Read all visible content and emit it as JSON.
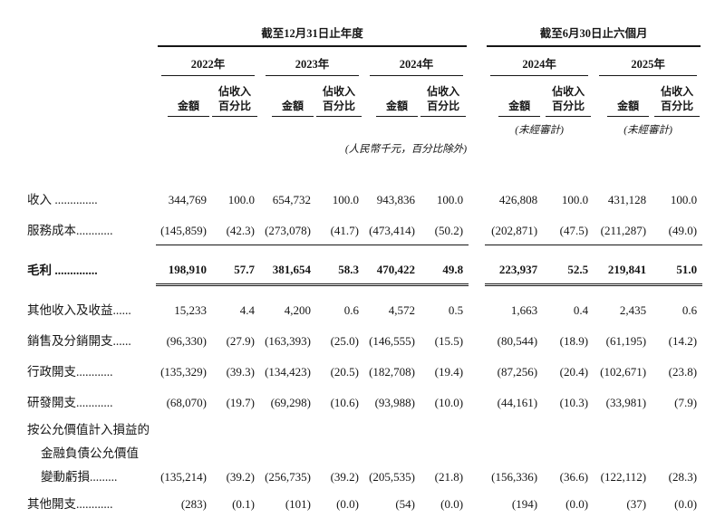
{
  "table": {
    "period_headers": {
      "annual": "截至12月31日止年度",
      "interim": "截至6月30日止六個月"
    },
    "year_headers": [
      "2022年",
      "2023年",
      "2024年",
      "2024年",
      "2025年"
    ],
    "col_headers": {
      "amount": "金額",
      "pct": "佔收入\n百分比"
    },
    "unaudited": "(未經審計)",
    "note": "(人民幣千元，百分比除外)",
    "rows": [
      {
        "label": "收入 ..............",
        "values": [
          "344,769",
          "100.0",
          "654,732",
          "100.0",
          "943,836",
          "100.0",
          "426,808",
          "100.0",
          "431,128",
          "100.0"
        ]
      },
      {
        "label": "服務成本............",
        "rule": "single",
        "values": [
          "(145,859)",
          "(42.3)",
          "(273,078)",
          "(41.7)",
          "(473,414)",
          "(50.2)",
          "(202,871)",
          "(47.5)",
          "(211,287)",
          "(49.0)"
        ]
      },
      {
        "label": "毛利 ..............",
        "bold": true,
        "gap_above": true,
        "rule": "double",
        "values": [
          "198,910",
          "57.7",
          "381,654",
          "58.3",
          "470,422",
          "49.8",
          "223,937",
          "52.5",
          "219,841",
          "51.0"
        ]
      },
      {
        "label": "其他收入及收益......",
        "gap_above": true,
        "values": [
          "15,233",
          "4.4",
          "4,200",
          "0.6",
          "4,572",
          "0.5",
          "1,663",
          "0.4",
          "2,435",
          "0.6"
        ]
      },
      {
        "label": "銷售及分銷開支......",
        "values": [
          "(96,330)",
          "(27.9)",
          "(163,393)",
          "(25.0)",
          "(146,555)",
          "(15.5)",
          "(80,544)",
          "(18.9)",
          "(61,195)",
          "(14.2)"
        ]
      },
      {
        "label": "行政開支............",
        "values": [
          "(135,329)",
          "(39.3)",
          "(134,423)",
          "(20.5)",
          "(182,708)",
          "(19.4)",
          "(87,256)",
          "(20.4)",
          "(102,671)",
          "(23.8)"
        ]
      },
      {
        "label": "研發開支............",
        "values": [
          "(68,070)",
          "(19.7)",
          "(69,298)",
          "(10.6)",
          "(93,988)",
          "(10.0)",
          "(44,161)",
          "(10.3)",
          "(33,981)",
          "(7.9)"
        ]
      },
      {
        "label": "按公允價值計入損益的",
        "compact": true,
        "values": null
      },
      {
        "label": "金融負債公允價值",
        "indent": true,
        "compact": true,
        "values": null
      },
      {
        "label": "變動虧損.........",
        "indent": true,
        "compact": true,
        "values": [
          "(135,214)",
          "(39.2)",
          "(256,735)",
          "(39.2)",
          "(205,535)",
          "(21.8)",
          "(156,336)",
          "(36.6)",
          "(122,112)",
          "(28.3)"
        ]
      },
      {
        "label": "其他開支............",
        "values": [
          "(283)",
          "(0.1)",
          "(101)",
          "(0.0)",
          "(54)",
          "(0.0)",
          "(194)",
          "(0.0)",
          "(37)",
          "(0.0)"
        ]
      }
    ]
  }
}
